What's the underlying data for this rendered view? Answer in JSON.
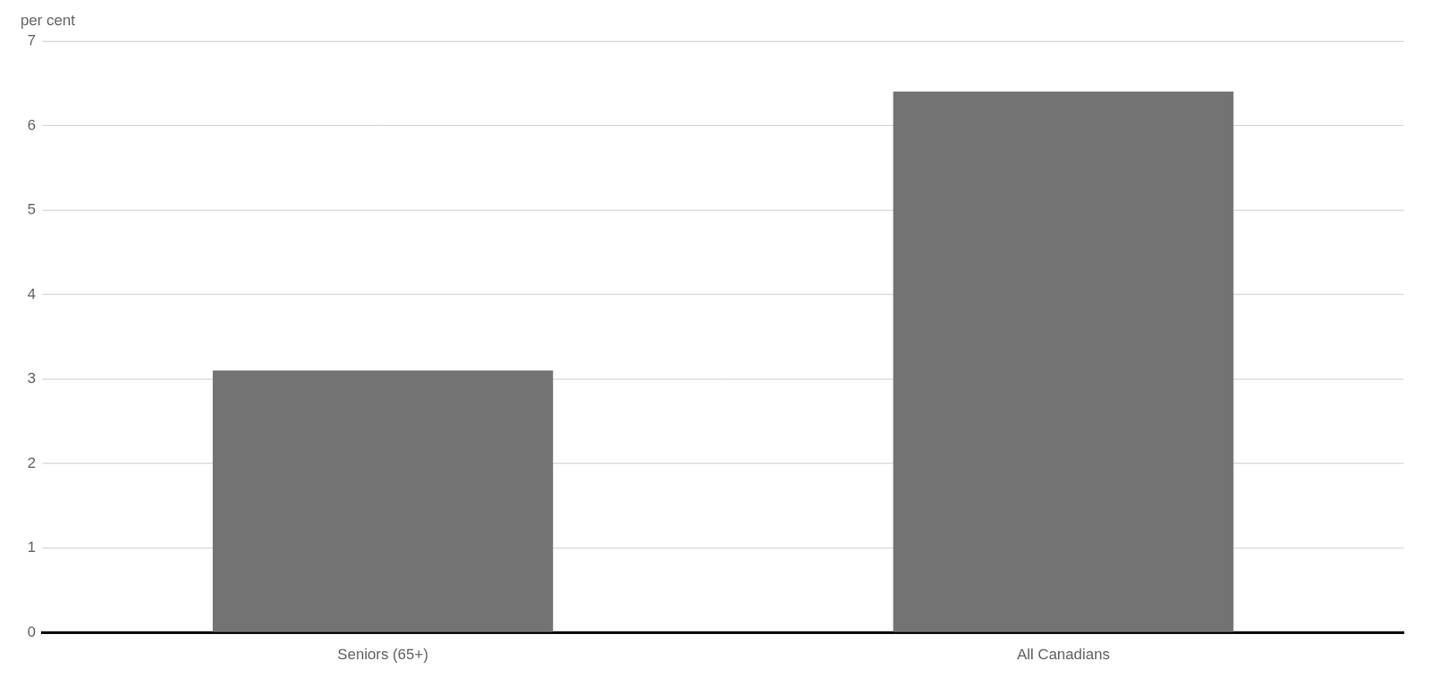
{
  "chart_data": {
    "type": "bar",
    "categories": [
      "Seniors (65+)",
      "All Canadians"
    ],
    "values": [
      3.1,
      6.4
    ],
    "color": "#737373",
    "ylabel": "per cent",
    "ylim": [
      0,
      7
    ],
    "yticks": [
      0,
      1,
      2,
      3,
      4,
      5,
      6,
      7
    ],
    "grid": true
  }
}
